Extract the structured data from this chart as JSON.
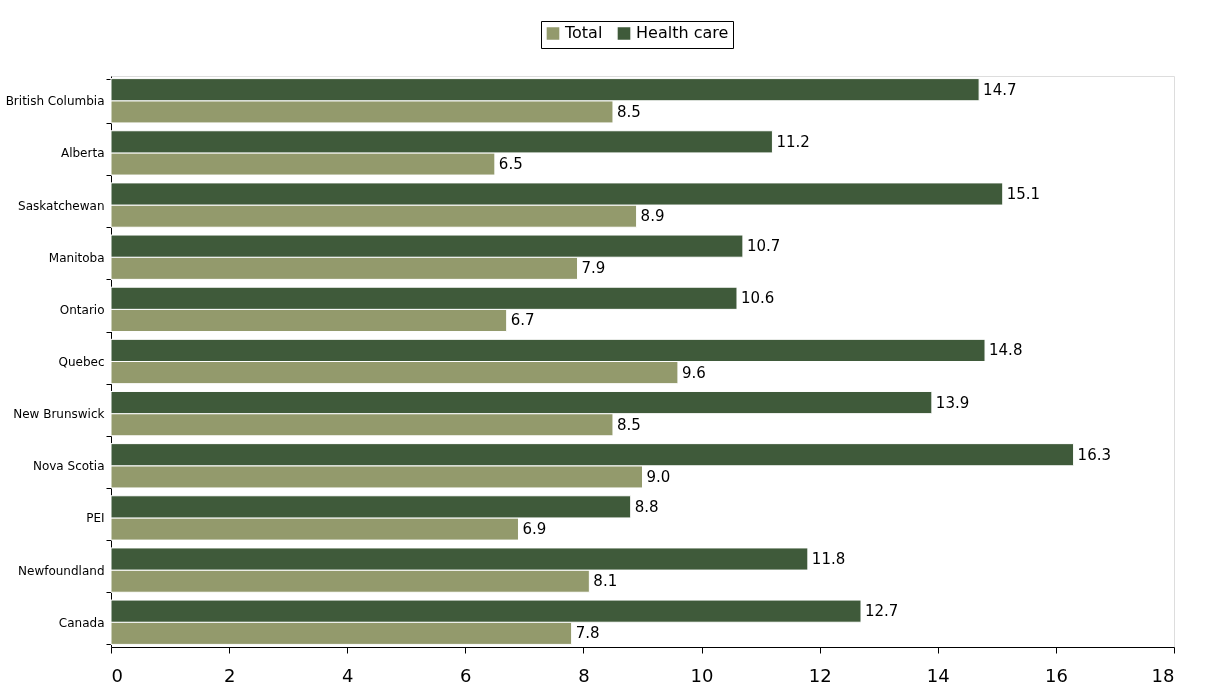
{
  "chart_data": {
    "type": "bar",
    "orientation": "horizontal",
    "categories": [
      "British Columbia",
      "Alberta",
      "Saskatchewan",
      "Manitoba",
      "Ontario",
      "Quebec",
      "New Brunswick",
      "Nova Scotia",
      "PEI",
      "Newfoundland",
      "Canada"
    ],
    "series": [
      {
        "name": "Total",
        "color": "#939a6c",
        "values": [
          8.5,
          6.5,
          8.9,
          7.9,
          6.7,
          9.6,
          8.5,
          9.0,
          6.9,
          8.1,
          7.8
        ]
      },
      {
        "name": "Health care",
        "color": "#3f5a3a",
        "values": [
          14.7,
          11.2,
          15.1,
          10.7,
          10.6,
          14.8,
          13.9,
          16.3,
          8.8,
          11.8,
          12.7
        ]
      }
    ],
    "xlim": [
      0,
      18
    ],
    "xticks": [
      0,
      2,
      4,
      6,
      8,
      10,
      12,
      14,
      16,
      18
    ],
    "grid": false,
    "legend": "top",
    "value_labels": [
      [
        "8.5",
        "6.5",
        "8.9",
        "7.9",
        "6.7",
        "9.6",
        "8.5",
        "9.0",
        "6.9",
        "8.1",
        "7.8"
      ],
      [
        "14.7",
        "11.2",
        "15.1",
        "10.7",
        "10.6",
        "14.8",
        "13.9",
        "16.3",
        "8.8",
        "11.8",
        "12.7"
      ]
    ]
  }
}
